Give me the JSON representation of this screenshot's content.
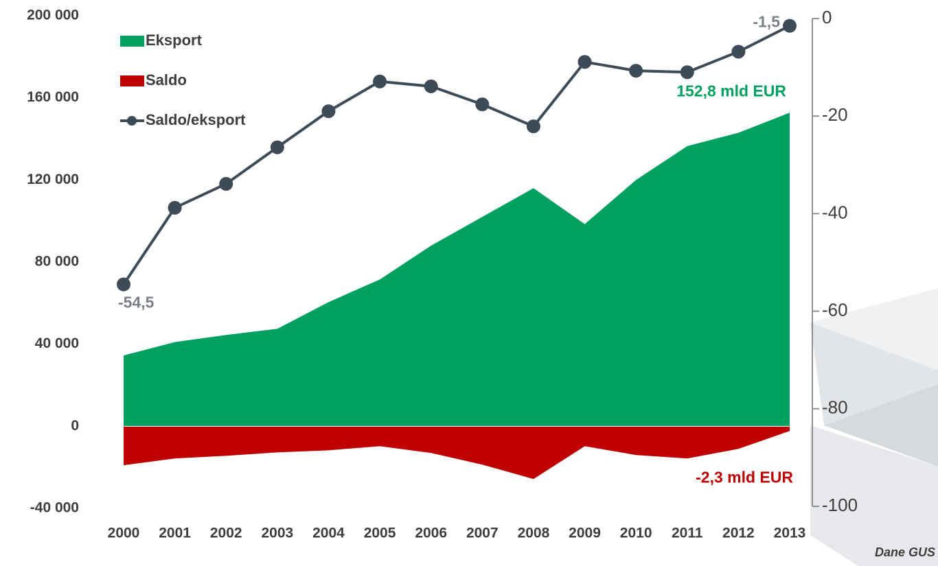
{
  "chart_data": {
    "type": "area-line",
    "categories": [
      "2000",
      "2001",
      "2002",
      "2003",
      "2004",
      "2005",
      "2006",
      "2007",
      "2008",
      "2009",
      "2010",
      "2011",
      "2012",
      "2013"
    ],
    "series": [
      {
        "name": "Eksport",
        "color": "#00a060",
        "kind": "area",
        "values": [
          34500,
          41000,
          44500,
          47500,
          60500,
          71500,
          88000,
          102000,
          116000,
          98500,
          120000,
          136500,
          143000,
          152800
        ],
        "value_labels": [
          null,
          null,
          null,
          null,
          null,
          null,
          null,
          null,
          null,
          null,
          null,
          null,
          null,
          "152,8 mld EUR"
        ]
      },
      {
        "name": "Saldo",
        "color": "#c00000",
        "kind": "area",
        "values": [
          -19000,
          -15700,
          -14400,
          -12700,
          -11700,
          -9700,
          -13000,
          -18700,
          -25700,
          -9700,
          -14000,
          -15700,
          -11000,
          -2300
        ],
        "value_labels": [
          null,
          null,
          null,
          null,
          null,
          null,
          null,
          null,
          null,
          null,
          null,
          null,
          null,
          "-2,3 mld EUR"
        ]
      },
      {
        "name": "Saldo/eksport",
        "color": "#3d4a57",
        "kind": "line",
        "axis": "y2",
        "values": [
          -54.5,
          -38.8,
          -33.9,
          -26.4,
          -19.0,
          -12.9,
          -13.9,
          -17.6,
          -22.1,
          -8.9,
          -10.7,
          -11.0,
          -6.8,
          -1.5
        ],
        "value_labels": [
          "-54,5",
          null,
          null,
          null,
          null,
          null,
          null,
          null,
          null,
          null,
          null,
          null,
          null,
          "-1,5"
        ]
      }
    ],
    "ylim": [
      -40000,
      200000
    ],
    "yticks": [
      {
        "value": -40000,
        "label": "-40 000"
      },
      0,
      {
        "value": 40000,
        "label": "40 000"
      },
      {
        "value": 80000,
        "label": "80 000"
      },
      {
        "value": 120000,
        "label": "120 000"
      },
      {
        "value": 160000,
        "label": "160 000"
      },
      {
        "value": 200000,
        "label": "200 000"
      }
    ],
    "y2lim": [
      -100,
      0
    ],
    "y2ticks": [
      -100,
      -80,
      -60,
      -40,
      -20,
      0
    ],
    "legend": "upper left",
    "source": "Dane GUS"
  }
}
